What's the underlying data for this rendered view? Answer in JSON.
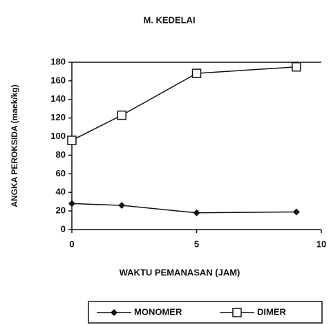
{
  "chart_data": {
    "type": "line",
    "title": "M. KEDELAI",
    "x_label": "WAKTU PEMANASAN (JAM)",
    "y_label": "ANGKA PEROKSIDA (maek/kg)",
    "x": [
      0,
      2,
      5,
      9
    ],
    "series": [
      {
        "name": "MONOMER",
        "color": "#111111",
        "marker": "diamond",
        "values": [
          28,
          26,
          18,
          19
        ]
      },
      {
        "name": "DIMER",
        "color": "#111111",
        "marker": "square",
        "values": [
          96,
          123,
          168,
          175
        ]
      }
    ],
    "xlim": [
      0,
      10
    ],
    "xticks": [
      0,
      5,
      10
    ],
    "ylim": [
      0,
      180
    ],
    "yticks": [
      0,
      20,
      40,
      60,
      80,
      100,
      120,
      140,
      160,
      180
    ],
    "legend": "bottom"
  }
}
